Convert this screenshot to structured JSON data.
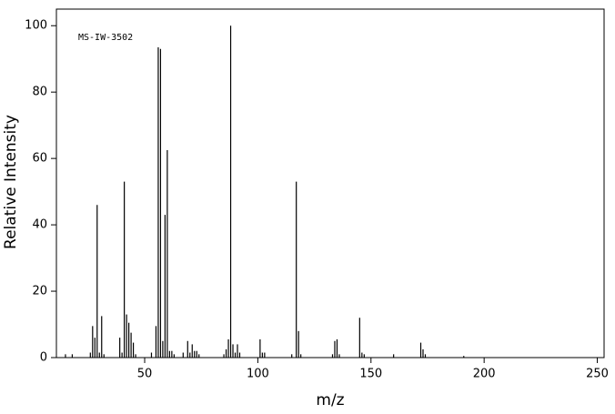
{
  "chart_data": {
    "type": "stick",
    "annotation": "MS-IW-3502",
    "x_label": "m/z",
    "y_label": "Relative Intensity",
    "x": [
      15,
      18,
      26,
      27,
      28,
      29,
      30,
      31,
      32,
      39,
      40,
      41,
      42,
      43,
      44,
      45,
      46,
      53,
      55,
      56,
      57,
      58,
      59,
      60,
      61,
      62,
      63,
      67,
      69,
      70,
      71,
      72,
      73,
      74,
      85,
      86,
      87,
      88,
      89,
      90,
      91,
      92,
      101,
      102,
      103,
      115,
      117,
      118,
      119,
      133,
      134,
      135,
      136,
      145,
      146,
      147,
      160,
      172,
      173,
      174,
      191
    ],
    "values": [
      1,
      1,
      1.5,
      9.5,
      6,
      46,
      1.5,
      12.5,
      1,
      6,
      1.5,
      53,
      13,
      10.5,
      7.5,
      4.5,
      1,
      1.5,
      9.5,
      93.5,
      93,
      5,
      43,
      62.5,
      2,
      2,
      1,
      1.5,
      5,
      1.5,
      4,
      2,
      2,
      1,
      1,
      2.5,
      5.5,
      100,
      4,
      1.5,
      4,
      1.5,
      5.5,
      1.5,
      1.5,
      1,
      53,
      8,
      1,
      1,
      5,
      5.5,
      1,
      12,
      1.5,
      1,
      1,
      4.5,
      2.5,
      1,
      0.5
    ],
    "color": "#000000",
    "xlim": [
      11,
      253
    ],
    "ylim": [
      0,
      105
    ],
    "xticks": [
      50,
      100,
      150,
      200,
      250
    ],
    "yticks": [
      0,
      20,
      40,
      60,
      80,
      100
    ]
  }
}
